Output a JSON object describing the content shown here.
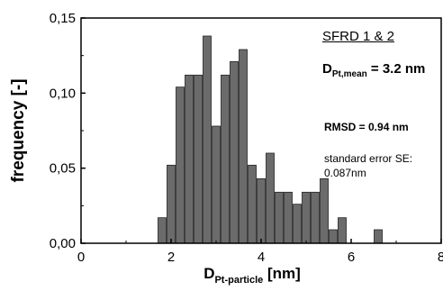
{
  "chart_data": {
    "type": "bar",
    "xlabel": {
      "main": "D",
      "sub": "Pt-particle",
      "unit": " [nm]"
    },
    "ylabel": "frequency [-]",
    "xlim": [
      0,
      8
    ],
    "ylim": [
      0,
      0.15
    ],
    "xticks": [
      0,
      2,
      4,
      6,
      8
    ],
    "xtick_labels": [
      "0",
      "2",
      "4",
      "6",
      "8"
    ],
    "yticks": [
      0,
      0.05,
      0.1,
      0.15
    ],
    "ytick_labels": [
      "0,00",
      "0,05",
      "0,10",
      "0,15"
    ],
    "bin_width": 0.2,
    "bars": [
      {
        "x": 1.8,
        "y": 0.017
      },
      {
        "x": 2.0,
        "y": 0.052
      },
      {
        "x": 2.2,
        "y": 0.104
      },
      {
        "x": 2.4,
        "y": 0.112
      },
      {
        "x": 2.6,
        "y": 0.112
      },
      {
        "x": 2.8,
        "y": 0.138
      },
      {
        "x": 3.0,
        "y": 0.078
      },
      {
        "x": 3.2,
        "y": 0.112
      },
      {
        "x": 3.4,
        "y": 0.121
      },
      {
        "x": 3.6,
        "y": 0.129
      },
      {
        "x": 3.8,
        "y": 0.052
      },
      {
        "x": 4.0,
        "y": 0.043
      },
      {
        "x": 4.2,
        "y": 0.06
      },
      {
        "x": 4.4,
        "y": 0.034
      },
      {
        "x": 4.6,
        "y": 0.034
      },
      {
        "x": 4.8,
        "y": 0.026
      },
      {
        "x": 5.0,
        "y": 0.034
      },
      {
        "x": 5.2,
        "y": 0.034
      },
      {
        "x": 5.4,
        "y": 0.043
      },
      {
        "x": 5.6,
        "y": 0.009
      },
      {
        "x": 5.8,
        "y": 0.017
      },
      {
        "x": 6.6,
        "y": 0.009
      }
    ],
    "bar_color": "#6b6b6b",
    "bar_edge_color": "#222222",
    "grid": false
  },
  "annotations": {
    "heading": "SFRD 1 & 2",
    "mean_main": "D",
    "mean_sub": "Pt,mean",
    "mean_value": " = 3.2 nm",
    "rmsd": "RMSD = 0.94 nm",
    "se_line1": "standard error SE:",
    "se_line2": "0.087nm"
  }
}
